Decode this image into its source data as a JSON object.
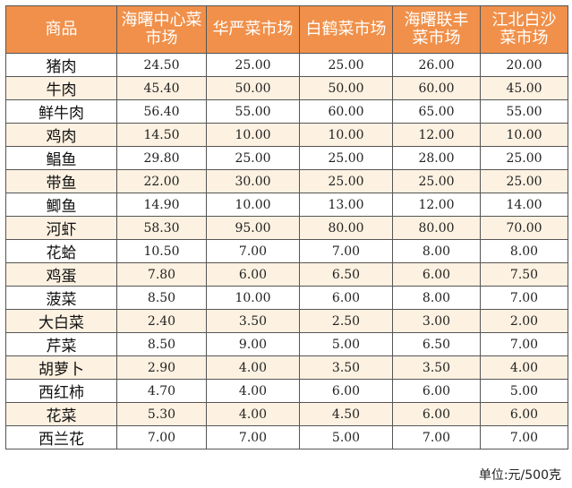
{
  "table": {
    "headers": [
      "商品",
      "海曙中心菜市场",
      "华严菜市场",
      "白鹤菜市场",
      "海曙联丰菜市场",
      "江北白沙菜市场"
    ],
    "rows": [
      [
        "猪肉",
        "24.50",
        "25.00",
        "25.00",
        "26.00",
        "20.00"
      ],
      [
        "牛肉",
        "45.40",
        "50.00",
        "50.00",
        "60.00",
        "45.00"
      ],
      [
        "鲜牛肉",
        "56.40",
        "55.00",
        "60.00",
        "65.00",
        "55.00"
      ],
      [
        "鸡肉",
        "14.50",
        "10.00",
        "10.00",
        "12.00",
        "10.00"
      ],
      [
        "鲳鱼",
        "29.80",
        "25.00",
        "25.00",
        "28.00",
        "25.00"
      ],
      [
        "带鱼",
        "22.00",
        "30.00",
        "25.00",
        "25.00",
        "25.00"
      ],
      [
        "鲫鱼",
        "14.90",
        "10.00",
        "13.00",
        "12.00",
        "14.00"
      ],
      [
        "河虾",
        "58.30",
        "95.00",
        "80.00",
        "80.00",
        "70.00"
      ],
      [
        "花蛤",
        "10.50",
        "7.00",
        "7.00",
        "8.00",
        "8.00"
      ],
      [
        "鸡蛋",
        "7.80",
        "6.00",
        "6.50",
        "6.00",
        "7.50"
      ],
      [
        "菠菜",
        "8.50",
        "10.00",
        "6.00",
        "8.00",
        "7.00"
      ],
      [
        "大白菜",
        "2.40",
        "3.50",
        "2.50",
        "3.00",
        "2.00"
      ],
      [
        "芹菜",
        "8.50",
        "9.00",
        "5.00",
        "6.50",
        "7.00"
      ],
      [
        "胡萝卜",
        "2.90",
        "4.00",
        "3.50",
        "3.50",
        "4.00"
      ],
      [
        "西红柿",
        "4.70",
        "4.00",
        "6.00",
        "6.00",
        "5.00"
      ],
      [
        "花菜",
        "5.30",
        "4.00",
        "4.50",
        "6.00",
        "6.00"
      ],
      [
        "西兰花",
        "7.00",
        "7.00",
        "5.00",
        "7.00",
        "7.00"
      ]
    ]
  },
  "unit_note": "单位:元/500克",
  "colors": {
    "header_bg": "#f0904a",
    "shade_bg": "#fdf1e1",
    "border": "#555555"
  }
}
